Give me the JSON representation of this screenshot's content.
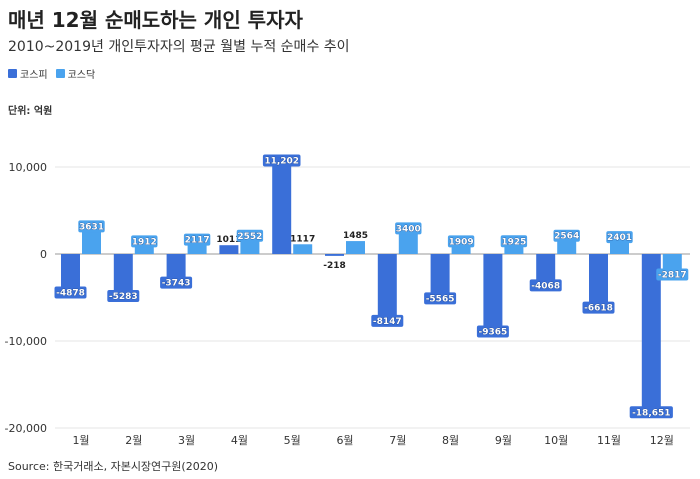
{
  "title": "매년 12월 순매도하는 개인 투자자",
  "subtitle": "2010~2019년 개인투자자의 평균 월별 누적 순매수 추이",
  "unit": "단위: 억원",
  "source": "Source: 한국거래소, 자본시장연구원(2020)",
  "colors": {
    "kospi": "#3a6fd8",
    "kosdaq": "#4aa3ee"
  },
  "chart_data": {
    "type": "bar",
    "categories": [
      "1월",
      "2월",
      "3월",
      "4월",
      "5월",
      "6월",
      "7월",
      "8월",
      "9월",
      "10월",
      "11월",
      "12월"
    ],
    "series": [
      {
        "name": "코스피",
        "values": [
          -4878,
          -5283,
          -3743,
          1011,
          11202,
          -218,
          -8147,
          -5565,
          -9365,
          -4068,
          -6618,
          -18651
        ]
      },
      {
        "name": "코스닥",
        "values": [
          3631,
          1912,
          2117,
          2552,
          1117,
          1485,
          3400,
          1909,
          1925,
          2564,
          2401,
          -2817
        ]
      }
    ],
    "data_labels": [
      [
        "-4878",
        "-5283",
        "-3743",
        "1011",
        "11,202",
        "-218",
        "-8147",
        "-5565",
        "-9365",
        "-4068",
        "-6618",
        "-18,651"
      ],
      [
        "3631",
        "1912",
        "2117",
        "2552",
        "1117",
        "1485",
        "3400",
        "1909",
        "1925",
        "2564",
        "2401",
        "-2817"
      ]
    ],
    "y_ticks": [
      10000,
      0,
      -10000,
      -20000
    ],
    "y_tick_labels": [
      "10,000",
      "0",
      "-10,000",
      "-20,000"
    ],
    "ylim": [
      -20000,
      13500
    ],
    "grid": true,
    "legend": "top-left"
  }
}
